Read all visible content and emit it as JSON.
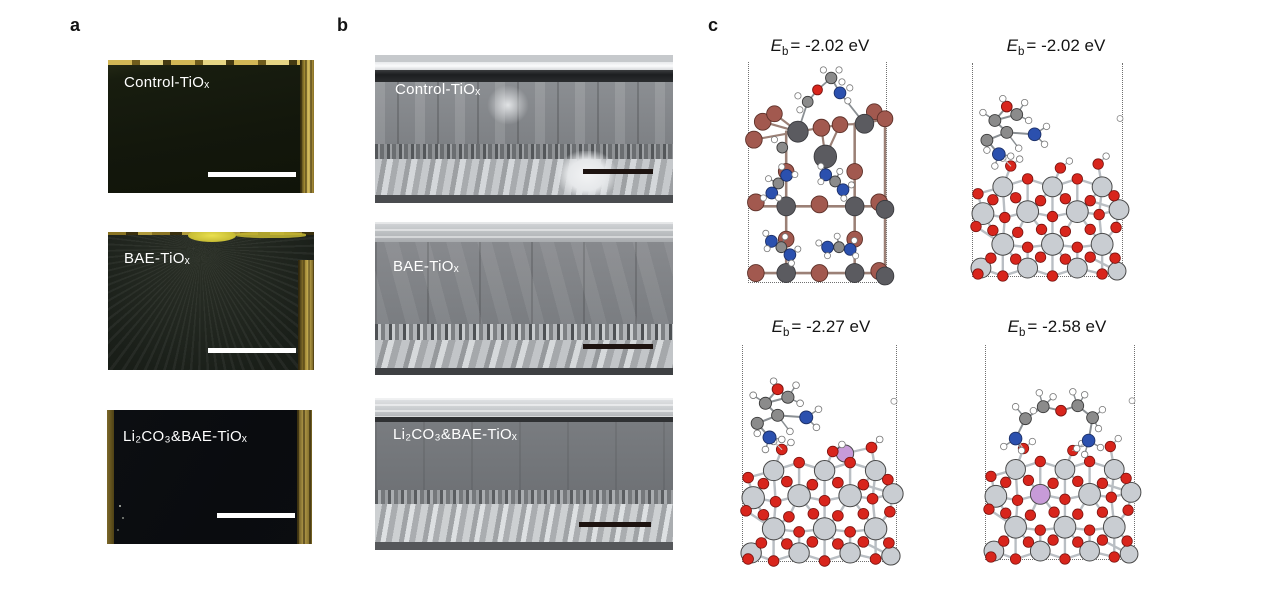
{
  "panel_a": {
    "label": "a",
    "photos": [
      {
        "title": "Control-TiOₓ"
      },
      {
        "title": "BAE-TiOₓ"
      },
      {
        "title": "Li₂CO₃&BAE-TiOₓ"
      }
    ]
  },
  "panel_b": {
    "label": "b",
    "sems": [
      {
        "title": "Control-TiOₓ"
      },
      {
        "title": "BAE-TiOₓ"
      },
      {
        "title": "Li₂CO₃&BAE-TiOₓ"
      }
    ]
  },
  "panel_c": {
    "label": "c",
    "eb_symbol": "E",
    "eb_sub": "b",
    "structures": [
      {
        "name": "adsorption-on-perovskite",
        "energy": "= -2.02 eV",
        "surface": "perovskite",
        "molecule": "amine",
        "lithium": "none"
      },
      {
        "name": "adsorption-on-tio2",
        "energy": "= -2.02 eV",
        "surface": "tio2",
        "molecule": "folded-amine",
        "lithium": "none"
      },
      {
        "name": "adsorption-on-li-tio2-adatom",
        "energy": "= -2.27 eV",
        "surface": "tio2",
        "molecule": "folded-amine",
        "lithium": "adatom"
      },
      {
        "name": "adsorption-on-li-tio2-embedded",
        "energy": "= -2.58 eV",
        "surface": "tio2",
        "molecule": "extended-bae",
        "lithium": "embedded"
      }
    ],
    "atom_colors": {
      "Ti": "#c9cdd2",
      "O": "#d8251c",
      "H": "#ffffff",
      "C": "#8b8b8b",
      "N": "#2b50ae",
      "I": "#a2594f",
      "Pb": "#5b5b60",
      "Li": "#c79bd8"
    }
  }
}
